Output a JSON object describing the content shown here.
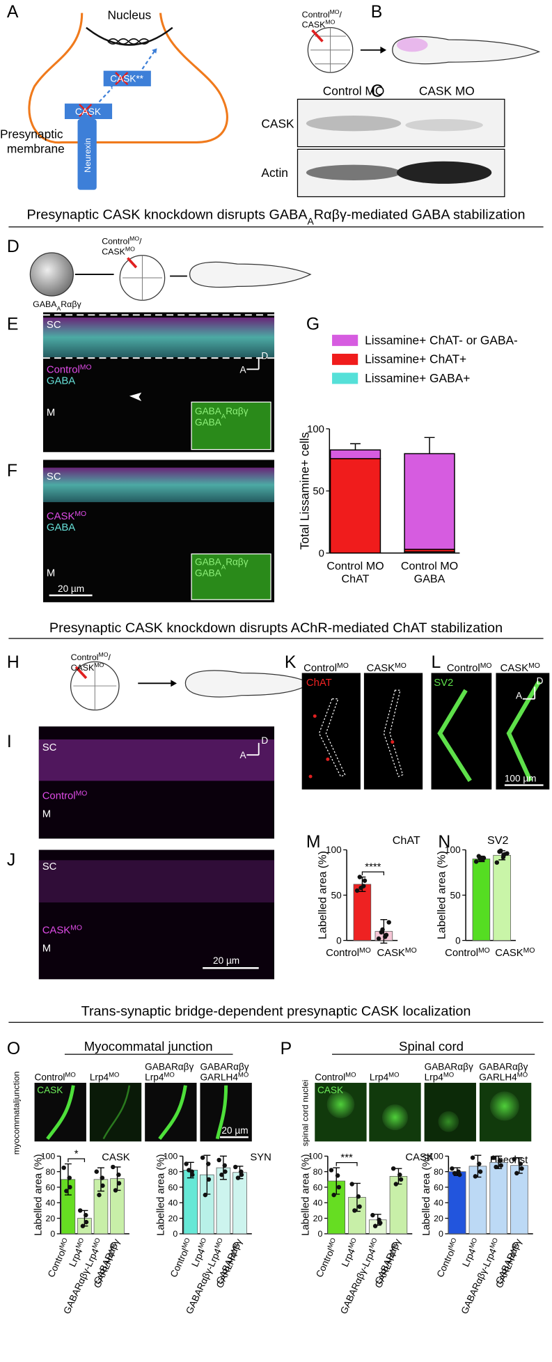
{
  "panels": {
    "A": {
      "letter": "A",
      "nucleus": "Nucleus",
      "cask_mutant": "CASK**",
      "cask": "CASK",
      "presynaptic": "Presynaptic",
      "membrane": "membrane",
      "neurexin": "Neurexin"
    },
    "B": {
      "letter": "B",
      "morpholinos": [
        [
          "Control",
          {
            "sup": "MO"
          },
          "/"
        ],
        [
          "CASK",
          {
            "sup": "MO"
          }
        ]
      ]
    },
    "C": {
      "letter": "C",
      "lanes": [
        "Control MO",
        "CASK MO"
      ],
      "rows": [
        "CASK",
        "Actin"
      ]
    },
    "D": {
      "letter": "D",
      "construct": [
        "GABA",
        {
          "sub": "A"
        },
        "Rαβγ"
      ],
      "morpholinos": [
        [
          "Control",
          {
            "sup": "MO"
          },
          "/"
        ],
        [
          "CASK",
          {
            "sup": "MO"
          }
        ]
      ]
    },
    "E": {
      "letter": "E",
      "sc": "SC",
      "condition": [
        "Control",
        {
          "sup": "MO"
        }
      ],
      "stain": "GABA",
      "axis_d": "D",
      "axis_a": "A",
      "m": "M",
      "inset": [
        [
          "GABA",
          {
            "sub": "A"
          },
          "Rαβγ"
        ],
        "GABA"
      ]
    },
    "F": {
      "letter": "F",
      "sc": "SC",
      "condition": [
        "CASK",
        {
          "sup": "MO"
        }
      ],
      "stain": "GABA",
      "m": "M",
      "inset": [
        [
          "GABA",
          {
            "sub": "A"
          },
          "Rαβγ"
        ],
        "GABA"
      ],
      "scale": "20 µm"
    },
    "G": {
      "letter": "G"
    },
    "H": {
      "letter": "H",
      "morpholinos": [
        [
          "Control",
          {
            "sup": "MO"
          },
          "/"
        ],
        [
          "CASK",
          {
            "sup": "MO"
          }
        ]
      ]
    },
    "I": {
      "letter": "I",
      "sc": "SC",
      "axis_d": "D",
      "axis_a": "A",
      "condition": [
        "Control",
        {
          "sup": "MO"
        }
      ],
      "m": "M"
    },
    "J": {
      "letter": "J",
      "sc": "SC",
      "condition": [
        "CASK",
        {
          "sup": "MO"
        }
      ],
      "m": "M",
      "scale": "20 µm"
    },
    "K": {
      "letter": "K",
      "conditions": [
        [
          "Control",
          {
            "sup": "MO"
          }
        ],
        [
          "CASK",
          {
            "sup": "MO"
          }
        ]
      ],
      "stain": "ChAT"
    },
    "L": {
      "letter": "L",
      "conditions": [
        [
          "Control",
          {
            "sup": "MO"
          }
        ],
        [
          "CASK",
          {
            "sup": "MO"
          }
        ]
      ],
      "stain": "SV2",
      "axis_d": "D",
      "axis_a": "A",
      "scale": "100 µm"
    },
    "M": {
      "letter": "M"
    },
    "N": {
      "letter": "N"
    },
    "O": {
      "letter": "O",
      "heading": "Myocommatal junction",
      "conditions": [
        [
          [
            "Control",
            {
              "sup": "MO"
            }
          ]
        ],
        [
          [
            "Lrp4",
            {
              "sup": "MO"
            }
          ]
        ],
        [
          "GABARαβγ",
          [
            "Lrp4",
            {
              "sup": "MO"
            }
          ]
        ],
        [
          "GABARαβγ",
          [
            "GARLH4",
            {
              "sup": "MO"
            }
          ]
        ]
      ],
      "stain": "CASK",
      "side": [
        "myocommatal",
        "junction"
      ],
      "scale": "20 µm"
    },
    "P": {
      "letter": "P",
      "heading": "Spinal cord",
      "conditions": [
        [
          [
            "Control",
            {
              "sup": "MO"
            }
          ]
        ],
        [
          [
            "Lrp4",
            {
              "sup": "MO"
            }
          ]
        ],
        [
          "GABARαβγ",
          [
            "Lrp4",
            {
              "sup": "MO"
            }
          ]
        ],
        [
          "GABARαβγ",
          [
            "GARLH4",
            {
              "sup": "MO"
            }
          ]
        ]
      ],
      "stain": "CASK",
      "side": "spinal cord nuclei"
    }
  },
  "sections": [
    [
      "Presynaptic CASK knockdown disrupts GABA",
      {
        "sub": "A"
      },
      "Rαβγ-mediated GABA stabilization"
    ],
    "Presynaptic CASK knockdown disrupts AChR-mediated ChAT stabilization",
    "Trans-synaptic bridge-dependent presynaptic CASK localization"
  ],
  "chart_data": [
    {
      "type": "stacked_bar",
      "y_label": "Total Lissamine+ cells",
      "categories": [
        [
          [
            "Control MO"
          ],
          [
            "ChAT"
          ]
        ],
        [
          [
            "Control MO"
          ],
          [
            "GABA"
          ]
        ]
      ],
      "series": [
        {
          "name": "Lissamine+ ChAT- or GABA-",
          "color": "#d65ce0",
          "values": [
            7,
            77
          ],
          "errors": [
            5,
            13
          ]
        },
        {
          "name": "Lissamine+ ChAT+",
          "color": "#f01c1c",
          "values": [
            76,
            2
          ]
        },
        {
          "name": "Lissamine+ GABA+",
          "color": "#55e0d8",
          "values": [
            0,
            1
          ]
        }
      ],
      "ylim": [
        0,
        100
      ],
      "yticks": [
        0,
        50,
        100
      ]
    },
    {
      "type": "bar",
      "title": "ChAT",
      "y_label": "Labelled area (%)",
      "categories": [
        [
          "Control",
          {
            "sup": "MO"
          }
        ],
        [
          "CASK",
          {
            "sup": "MO"
          }
        ]
      ],
      "values": [
        62,
        10
      ],
      "errors": [
        8,
        13
      ],
      "points": [
        [
          55,
          60,
          66,
          70,
          58
        ],
        [
          2,
          4,
          6,
          9,
          12,
          20
        ]
      ],
      "colors": [
        "#ee2222",
        "#f5c6d6"
      ],
      "significance": "****",
      "ylim": [
        0,
        100
      ],
      "yticks": [
        0,
        50,
        100
      ]
    },
    {
      "type": "bar",
      "title": "SV2",
      "y_label": "Labelled area (%)",
      "categories": [
        [
          "Control",
          {
            "sup": "MO"
          }
        ],
        [
          "CASK",
          {
            "sup": "MO"
          }
        ]
      ],
      "values": [
        90,
        94
      ],
      "errors": [
        3,
        5
      ],
      "points": [
        [
          87,
          89,
          91,
          93,
          90
        ],
        [
          86,
          92,
          95,
          98,
          99,
          96
        ]
      ],
      "colors": [
        "#55dd22",
        "#c9f5a8"
      ],
      "ylim": [
        0,
        100
      ],
      "yticks": [
        0,
        50,
        100
      ]
    },
    {
      "type": "bar",
      "title": "CASK",
      "y_label": "Labelled area (%)",
      "categories": [
        [
          "Control",
          {
            "sup": "MO"
          }
        ],
        [
          "Lrp4",
          {
            "sup": "MO"
          }
        ],
        [
          "GABARαβγ-Lrp4",
          {
            "sup": "MO"
          }
        ],
        [
          [
            "GABARαβγ"
          ],
          [
            "GARLH4",
            {
              "sup": "MO"
            }
          ]
        ]
      ],
      "values": [
        70,
        20,
        70,
        71
      ],
      "errors": [
        20,
        10,
        15,
        15
      ],
      "points": [
        [
          85,
          72,
          60,
          55
        ],
        [
          30,
          24,
          15,
          10
        ],
        [
          80,
          72,
          62,
          50
        ],
        [
          86,
          76,
          65,
          56
        ]
      ],
      "colors": [
        "#66dd22",
        "#c8efa8",
        "#c8efa8",
        "#c8efa8"
      ],
      "significance": "*",
      "ylim": [
        0,
        100
      ],
      "yticks": [
        0,
        20,
        40,
        60,
        80,
        100
      ]
    },
    {
      "type": "bar",
      "title": "SYN",
      "y_label": "Labelled area (%)",
      "categories": [
        [
          "Control",
          {
            "sup": "MO"
          }
        ],
        [
          "Lrp4",
          {
            "sup": "MO"
          }
        ],
        [
          "GABARαβγ-Lrp4",
          {
            "sup": "MO"
          }
        ],
        [
          [
            "GABARαβγ"
          ],
          [
            "GARLH4",
            {
              "sup": "MO"
            }
          ]
        ]
      ],
      "values": [
        82,
        76,
        85,
        79
      ],
      "errors": [
        10,
        25,
        15,
        8
      ],
      "points": [
        [
          90,
          80,
          76,
          82
        ],
        [
          98,
          90,
          70,
          50
        ],
        [
          95,
          88,
          80,
          76
        ],
        [
          86,
          80,
          76,
          72
        ]
      ],
      "colors": [
        "#66e8d6",
        "#b8f1e8",
        "#cdf4ee",
        "#cdf4ee"
      ],
      "ylim": [
        0,
        100
      ],
      "yticks": [
        0,
        20,
        40,
        60,
        80,
        100
      ]
    },
    {
      "type": "bar",
      "title": "CASK",
      "y_label": "Labelled area (%)",
      "categories": [
        [
          "Control",
          {
            "sup": "MO"
          }
        ],
        [
          "Lrp4",
          {
            "sup": "MO"
          }
        ],
        [
          "GABARαβγ-Lrp4",
          {
            "sup": "MO"
          }
        ],
        [
          [
            "GABARαβγ"
          ],
          [
            "GARLH4",
            {
              "sup": "MO"
            }
          ]
        ]
      ],
      "values": [
        68,
        47,
        18,
        74
      ],
      "errors": [
        17,
        18,
        7,
        10
      ],
      "points": [
        [
          82,
          75,
          60,
          50
        ],
        [
          64,
          48,
          35,
          30
        ],
        [
          24,
          18,
          14,
          10
        ],
        [
          84,
          76,
          70,
          64
        ]
      ],
      "colors": [
        "#66dd22",
        "#c8efa8",
        "#e2f7d2",
        "#c8efa8"
      ],
      "significance": "***",
      "ylim": [
        0,
        100
      ],
      "yticks": [
        0,
        20,
        40,
        60,
        80,
        100
      ]
    },
    {
      "type": "bar",
      "title": "Hoechst",
      "y_label": "Labelled area (%)",
      "categories": [
        [
          "Control",
          {
            "sup": "MO"
          }
        ],
        [
          "Lrp4",
          {
            "sup": "MO"
          }
        ],
        [
          "GABARαβγ-Lrp4",
          {
            "sup": "MO"
          }
        ],
        [
          [
            "GABARαβγ"
          ],
          [
            "GARLH4",
            {
              "sup": "MO"
            }
          ]
        ]
      ],
      "values": [
        80,
        87,
        92,
        88
      ],
      "errors": [
        5,
        14,
        8,
        10
      ],
      "points": [
        [
          84,
          80,
          76,
          78
        ],
        [
          98,
          90,
          80,
          74
        ],
        [
          98,
          94,
          88,
          86
        ],
        [
          96,
          90,
          84,
          78
        ]
      ],
      "colors": [
        "#2255dd",
        "#bcd9f5",
        "#bcd9f5",
        "#bcd9f5"
      ],
      "ylim": [
        0,
        100
      ],
      "yticks": [
        0,
        20,
        40,
        60,
        80,
        100
      ]
    }
  ]
}
